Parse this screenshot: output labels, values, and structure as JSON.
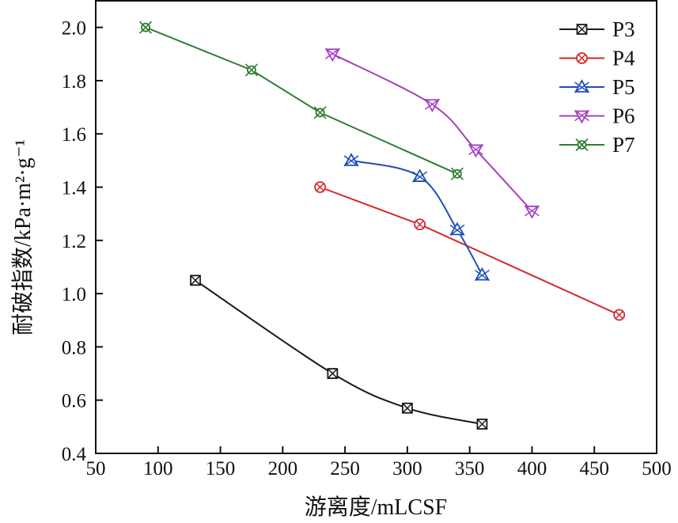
{
  "chart_data": {
    "type": "line",
    "title": "",
    "xlabel": "游离度/mLCSF",
    "ylabel": "耐破指数/kPa·m²·g⁻¹",
    "xlim": [
      50,
      500
    ],
    "ylim": [
      0.4,
      2.1
    ],
    "x_ticks": [
      50,
      100,
      150,
      200,
      250,
      300,
      350,
      400,
      450,
      500
    ],
    "x_tick_labels": [
      "50",
      "100",
      "150",
      "200",
      "250",
      "300",
      "350",
      "400",
      "450",
      "500"
    ],
    "y_ticks": [
      0.4,
      0.6,
      0.8,
      1.0,
      1.2,
      1.4,
      1.6,
      1.8,
      2.0
    ],
    "y_tick_labels": [
      "0.4",
      "0.6",
      "0.8",
      "1.0",
      "1.2",
      "1.4",
      "1.6",
      "1.8",
      "2.0"
    ],
    "grid": false,
    "legend_position": "top-right",
    "series": [
      {
        "name": "P3",
        "color": "#1a1a1a",
        "marker": "square-x",
        "smooth": true,
        "x": [
          130,
          240,
          300,
          360
        ],
        "y": [
          1.05,
          0.7,
          0.57,
          0.51
        ]
      },
      {
        "name": "P4",
        "color": "#d62728",
        "marker": "circle-x",
        "smooth": false,
        "x": [
          230,
          310,
          470
        ],
        "y": [
          1.4,
          1.26,
          0.92
        ]
      },
      {
        "name": "P5",
        "color": "#1f4fb4",
        "marker": "triangle-up-x",
        "smooth": true,
        "x": [
          255,
          310,
          340,
          360
        ],
        "y": [
          1.5,
          1.44,
          1.24,
          1.07
        ]
      },
      {
        "name": "P6",
        "color": "#a43fc0",
        "marker": "triangle-down-x",
        "smooth": true,
        "x": [
          240,
          320,
          355,
          400
        ],
        "y": [
          1.9,
          1.71,
          1.54,
          1.31
        ]
      },
      {
        "name": "P7",
        "color": "#2e7d32",
        "marker": "circle-xx",
        "smooth": false,
        "x": [
          90,
          175,
          230,
          340
        ],
        "y": [
          2.0,
          1.84,
          1.68,
          1.45
        ]
      }
    ]
  }
}
